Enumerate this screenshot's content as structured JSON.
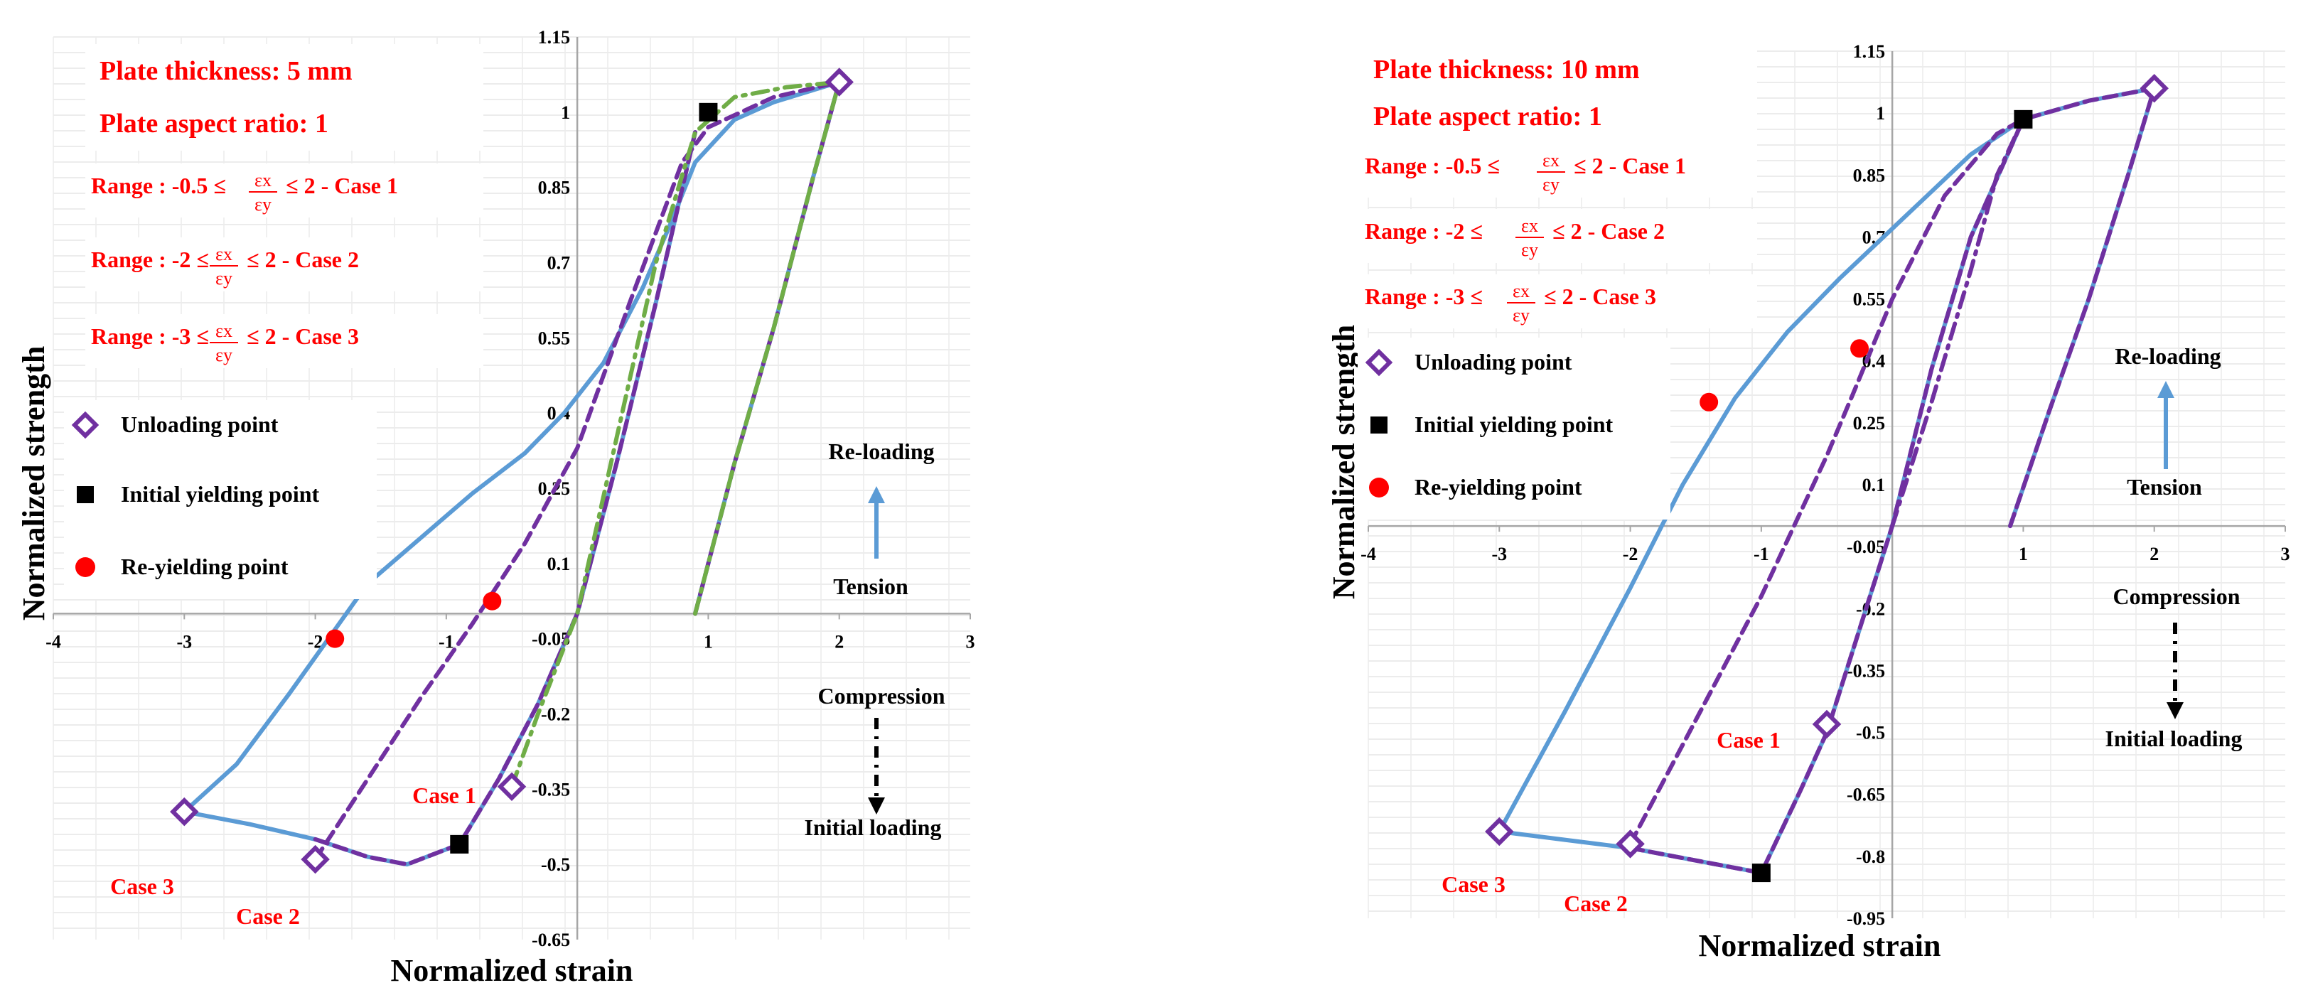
{
  "chart_data": [
    {
      "type": "line",
      "ylabel": "Normalized  strength",
      "xlabel": "Normalized  strain",
      "xlim": [
        -4,
        3
      ],
      "ylim": [
        -0.65,
        1.15
      ],
      "x_ticks": [
        "-4",
        "-3",
        "-2",
        "-1",
        "0",
        "1",
        "2",
        "3"
      ],
      "y_ticks": [
        "1.15",
        "1",
        "0.85",
        "0.7",
        "0.55",
        "0.4",
        "0.25",
        "0.1",
        "-0.05",
        "-0.2",
        "-0.35",
        "-0.5",
        "-0.65"
      ],
      "info": {
        "thickness": "Plate thickness: 5 mm",
        "aspect": "Plate aspect ratio: 1",
        "ranges": [
          {
            "prefix": "Range : -0.5 ≤",
            "suffix": "≤ 2 -  Case 1"
          },
          {
            "prefix": "Range : -2 ≤",
            "suffix": "≤ 2 -  Case 2"
          },
          {
            "prefix": "Range : -3 ≤",
            "suffix": "≤ 2  - Case 3"
          }
        ],
        "frac_num": "εx",
        "frac_den": "εy"
      },
      "legend": {
        "unloading": "Unloading point",
        "initial_yield": "Initial yielding point",
        "re_yield": "Re-yielding point"
      },
      "annotations": {
        "reloading": "Re-loading",
        "tension": "Tension",
        "compression": "Compression",
        "initial_loading": "Initial loading",
        "case1": "Case 1",
        "case2": "Case 2",
        "case3": "Case 3"
      },
      "series": [
        {
          "style": "solid",
          "color": "#5b9bd5",
          "x": [
            -3.0,
            -2.6,
            -2.2,
            -1.9,
            -1.6,
            -1.2,
            -0.8,
            -0.4,
            -0.1,
            0.2,
            0.5,
            0.7,
            0.9,
            1.2,
            1.5,
            2.0
          ],
          "y": [
            -0.395,
            -0.3,
            -0.16,
            -0.05,
            0.06,
            0.15,
            0.24,
            0.32,
            0.4,
            0.5,
            0.65,
            0.77,
            0.9,
            0.985,
            1.02,
            1.06
          ]
        },
        {
          "style": "solid",
          "color": "#5b9bd5",
          "x": [
            -3.0,
            -2.5,
            -2.0,
            -1.6,
            -1.3,
            -1.0,
            -0.9,
            -0.6,
            -0.3,
            0.0,
            0.3,
            0.6,
            0.9
          ],
          "y": [
            -0.395,
            -0.42,
            -0.45,
            -0.485,
            -0.5,
            -0.47,
            -0.46,
            -0.33,
            -0.18,
            0.0,
            0.3,
            0.62,
            0.96
          ]
        },
        {
          "style": "solid",
          "color": "#5b9bd5",
          "x": [
            0.9,
            1.2,
            1.5,
            1.8,
            2.0
          ],
          "y": [
            0.0,
            0.3,
            0.57,
            0.87,
            1.06
          ]
        },
        {
          "style": "dashed",
          "color": "#7030a0",
          "x": [
            -2.0,
            -1.6,
            -1.2,
            -0.8,
            -0.4,
            0.0,
            0.4,
            0.8,
            1.0,
            1.5,
            2.0
          ],
          "y": [
            -0.49,
            -0.33,
            -0.17,
            -0.02,
            0.14,
            0.33,
            0.62,
            0.9,
            0.97,
            1.03,
            1.06
          ]
        },
        {
          "style": "dashed",
          "color": "#7030a0",
          "x": [
            -2.0,
            -1.6,
            -1.3,
            -1.0,
            -0.9,
            -0.6,
            -0.3,
            0.0,
            0.3,
            0.6,
            0.9
          ],
          "y": [
            -0.45,
            -0.485,
            -0.5,
            -0.47,
            -0.46,
            -0.33,
            -0.18,
            0.0,
            0.3,
            0.62,
            0.96
          ]
        },
        {
          "style": "dashed",
          "color": "#7030a0",
          "x": [
            0.9,
            1.2,
            1.5,
            1.8,
            2.0
          ],
          "y": [
            0.0,
            0.3,
            0.57,
            0.87,
            1.06
          ]
        },
        {
          "style": "dashdot",
          "color": "#70ad47",
          "x": [
            -0.5,
            -0.3,
            0.0,
            0.3,
            0.6,
            0.9,
            1.2,
            1.6,
            2.0
          ],
          "y": [
            -0.345,
            -0.2,
            0.0,
            0.35,
            0.7,
            0.96,
            1.03,
            1.05,
            1.06
          ]
        },
        {
          "style": "dashdot",
          "color": "#70ad47",
          "x": [
            0.9,
            1.2,
            1.5,
            1.8,
            2.0
          ],
          "y": [
            0.0,
            0.3,
            0.57,
            0.87,
            1.06
          ]
        }
      ],
      "unloading_points": [
        [
          2.0,
          1.06
        ],
        [
          -0.5,
          -0.345
        ],
        [
          -2.0,
          -0.49
        ],
        [
          -3.0,
          -0.395
        ]
      ],
      "initial_yield_points": [
        [
          1.0,
          1.0
        ],
        [
          -0.9,
          -0.46
        ]
      ],
      "re_yield_points": [
        [
          -1.85,
          -0.05
        ],
        [
          -0.65,
          0.025
        ]
      ]
    },
    {
      "type": "line",
      "ylabel": "Normalized  strength",
      "xlabel": "Normalized  strain",
      "xlim": [
        -4,
        3
      ],
      "ylim": [
        -0.95,
        1.15
      ],
      "x_ticks": [
        "-4",
        "-3",
        "-2",
        "-1",
        "0",
        "1",
        "2",
        "3"
      ],
      "y_ticks": [
        "1.15",
        "1",
        "0.85",
        "0.7",
        "0.55",
        "0.4",
        "0.25",
        "0.1",
        "-0.05",
        "-0.2",
        "-0.35",
        "-0.5",
        "-0.65",
        "-0.8",
        "-0.95"
      ],
      "info": {
        "thickness": "Plate thickness: 10 mm",
        "aspect": "Plate aspect ratio: 1",
        "ranges": [
          {
            "prefix": "Range : -0.5 ≤",
            "suffix": "≤ 2 -  Case 1"
          },
          {
            "prefix": "Range : -2 ≤",
            "suffix": "≤ 2 -  Case 2"
          },
          {
            "prefix": "Range : -3 ≤",
            "suffix": "≤ 2 - Case 3"
          }
        ],
        "frac_num": "εx",
        "frac_den": "εy"
      },
      "legend": {
        "unloading": "Unloading point",
        "initial_yield": "Initial yielding point",
        "re_yield": "Re-yielding point"
      },
      "annotations": {
        "reloading": "Re-loading",
        "tension": "Tension",
        "compression": "Compression",
        "initial_loading": "Initial loading",
        "case1": "Case 1",
        "case2": "Case 2",
        "case3": "Case 3"
      },
      "series": [
        {
          "style": "solid",
          "color": "#5b9bd5",
          "x": [
            -3.0,
            -2.5,
            -2.0,
            -1.6,
            -1.2,
            -0.8,
            -0.4,
            0.0,
            0.3,
            0.6,
            1.0,
            1.5,
            2.0
          ],
          "y": [
            -0.74,
            -0.45,
            -0.15,
            0.1,
            0.31,
            0.47,
            0.6,
            0.72,
            0.81,
            0.9,
            0.985,
            1.03,
            1.06
          ]
        },
        {
          "style": "solid",
          "color": "#5b9bd5",
          "x": [
            -3.0,
            -2.5,
            -2.0,
            -1.5,
            -1.0,
            -0.7,
            -0.5,
            -0.3,
            0.0,
            0.3,
            0.6,
            1.0
          ],
          "y": [
            -0.74,
            -0.76,
            -0.78,
            -0.81,
            -0.84,
            -0.64,
            -0.5,
            -0.3,
            0.0,
            0.38,
            0.7,
            0.985
          ]
        },
        {
          "style": "solid",
          "color": "#5b9bd5",
          "x": [
            0.9,
            1.2,
            1.5,
            1.8,
            2.0
          ],
          "y": [
            0.0,
            0.28,
            0.55,
            0.85,
            1.06
          ]
        },
        {
          "style": "dashed",
          "color": "#7030a0",
          "x": [
            -2.0,
            -1.5,
            -1.0,
            -0.5,
            -0.3,
            0.0,
            0.4,
            0.8,
            1.0,
            1.5,
            2.0
          ],
          "y": [
            -0.77,
            -0.47,
            -0.17,
            0.17,
            0.32,
            0.55,
            0.8,
            0.95,
            0.985,
            1.03,
            1.06
          ]
        },
        {
          "style": "dashed",
          "color": "#7030a0",
          "x": [
            -2.0,
            -1.5,
            -1.0,
            -0.7,
            -0.5,
            -0.3,
            0.0,
            0.3,
            0.6,
            1.0
          ],
          "y": [
            -0.78,
            -0.81,
            -0.84,
            -0.64,
            -0.5,
            -0.3,
            0.0,
            0.38,
            0.7,
            0.985
          ]
        },
        {
          "style": "dashed",
          "color": "#7030a0",
          "x": [
            0.9,
            1.2,
            1.5,
            1.8,
            2.0
          ],
          "y": [
            0.0,
            0.28,
            0.55,
            0.85,
            1.06
          ]
        },
        {
          "style": "dashdot",
          "color": "#7030a0",
          "x": [
            0.0,
            0.3,
            0.6,
            0.8,
            1.0
          ],
          "y": [
            0.0,
            0.3,
            0.62,
            0.85,
            0.985
          ]
        }
      ],
      "unloading_points": [
        [
          2.0,
          1.06
        ],
        [
          -0.5,
          -0.48
        ],
        [
          -2.0,
          -0.77
        ],
        [
          -3.0,
          -0.74
        ]
      ],
      "initial_yield_points": [
        [
          1.0,
          0.985
        ],
        [
          -1.0,
          -0.84
        ]
      ],
      "re_yield_points": [
        [
          -1.4,
          0.3
        ],
        [
          -0.25,
          0.43
        ]
      ]
    }
  ]
}
